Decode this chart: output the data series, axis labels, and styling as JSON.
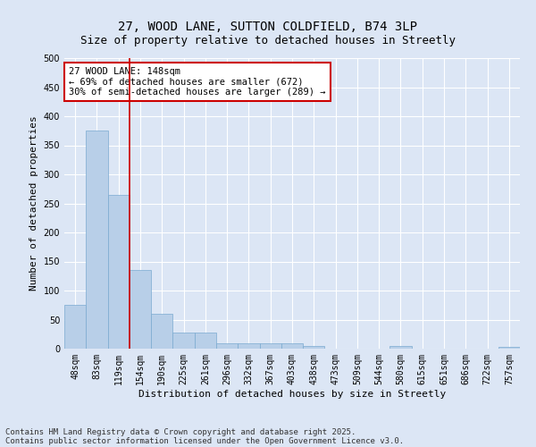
{
  "title_line1": "27, WOOD LANE, SUTTON COLDFIELD, B74 3LP",
  "title_line2": "Size of property relative to detached houses in Streetly",
  "xlabel": "Distribution of detached houses by size in Streetly",
  "ylabel": "Number of detached properties",
  "categories": [
    "48sqm",
    "83sqm",
    "119sqm",
    "154sqm",
    "190sqm",
    "225sqm",
    "261sqm",
    "296sqm",
    "332sqm",
    "367sqm",
    "403sqm",
    "438sqm",
    "473sqm",
    "509sqm",
    "544sqm",
    "580sqm",
    "615sqm",
    "651sqm",
    "686sqm",
    "722sqm",
    "757sqm"
  ],
  "values": [
    75,
    375,
    265,
    135,
    60,
    28,
    28,
    10,
    10,
    10,
    10,
    5,
    0,
    0,
    0,
    4,
    0,
    0,
    0,
    0,
    3
  ],
  "bar_color": "#b8cfe8",
  "bar_edge_color": "#7aaad0",
  "vline_color": "#cc0000",
  "annotation_text": "27 WOOD LANE: 148sqm\n← 69% of detached houses are smaller (672)\n30% of semi-detached houses are larger (289) →",
  "annotation_box_facecolor": "#ffffff",
  "annotation_box_edgecolor": "#cc0000",
  "ylim": [
    0,
    500
  ],
  "yticks": [
    0,
    50,
    100,
    150,
    200,
    250,
    300,
    350,
    400,
    450,
    500
  ],
  "fig_background_color": "#dce6f5",
  "plot_background_color": "#dce6f5",
  "grid_color": "#ffffff",
  "footer_line1": "Contains HM Land Registry data © Crown copyright and database right 2025.",
  "footer_line2": "Contains public sector information licensed under the Open Government Licence v3.0.",
  "title_fontsize": 10,
  "subtitle_fontsize": 9,
  "axis_label_fontsize": 8,
  "tick_fontsize": 7,
  "annotation_fontsize": 7.5,
  "footer_fontsize": 6.5
}
